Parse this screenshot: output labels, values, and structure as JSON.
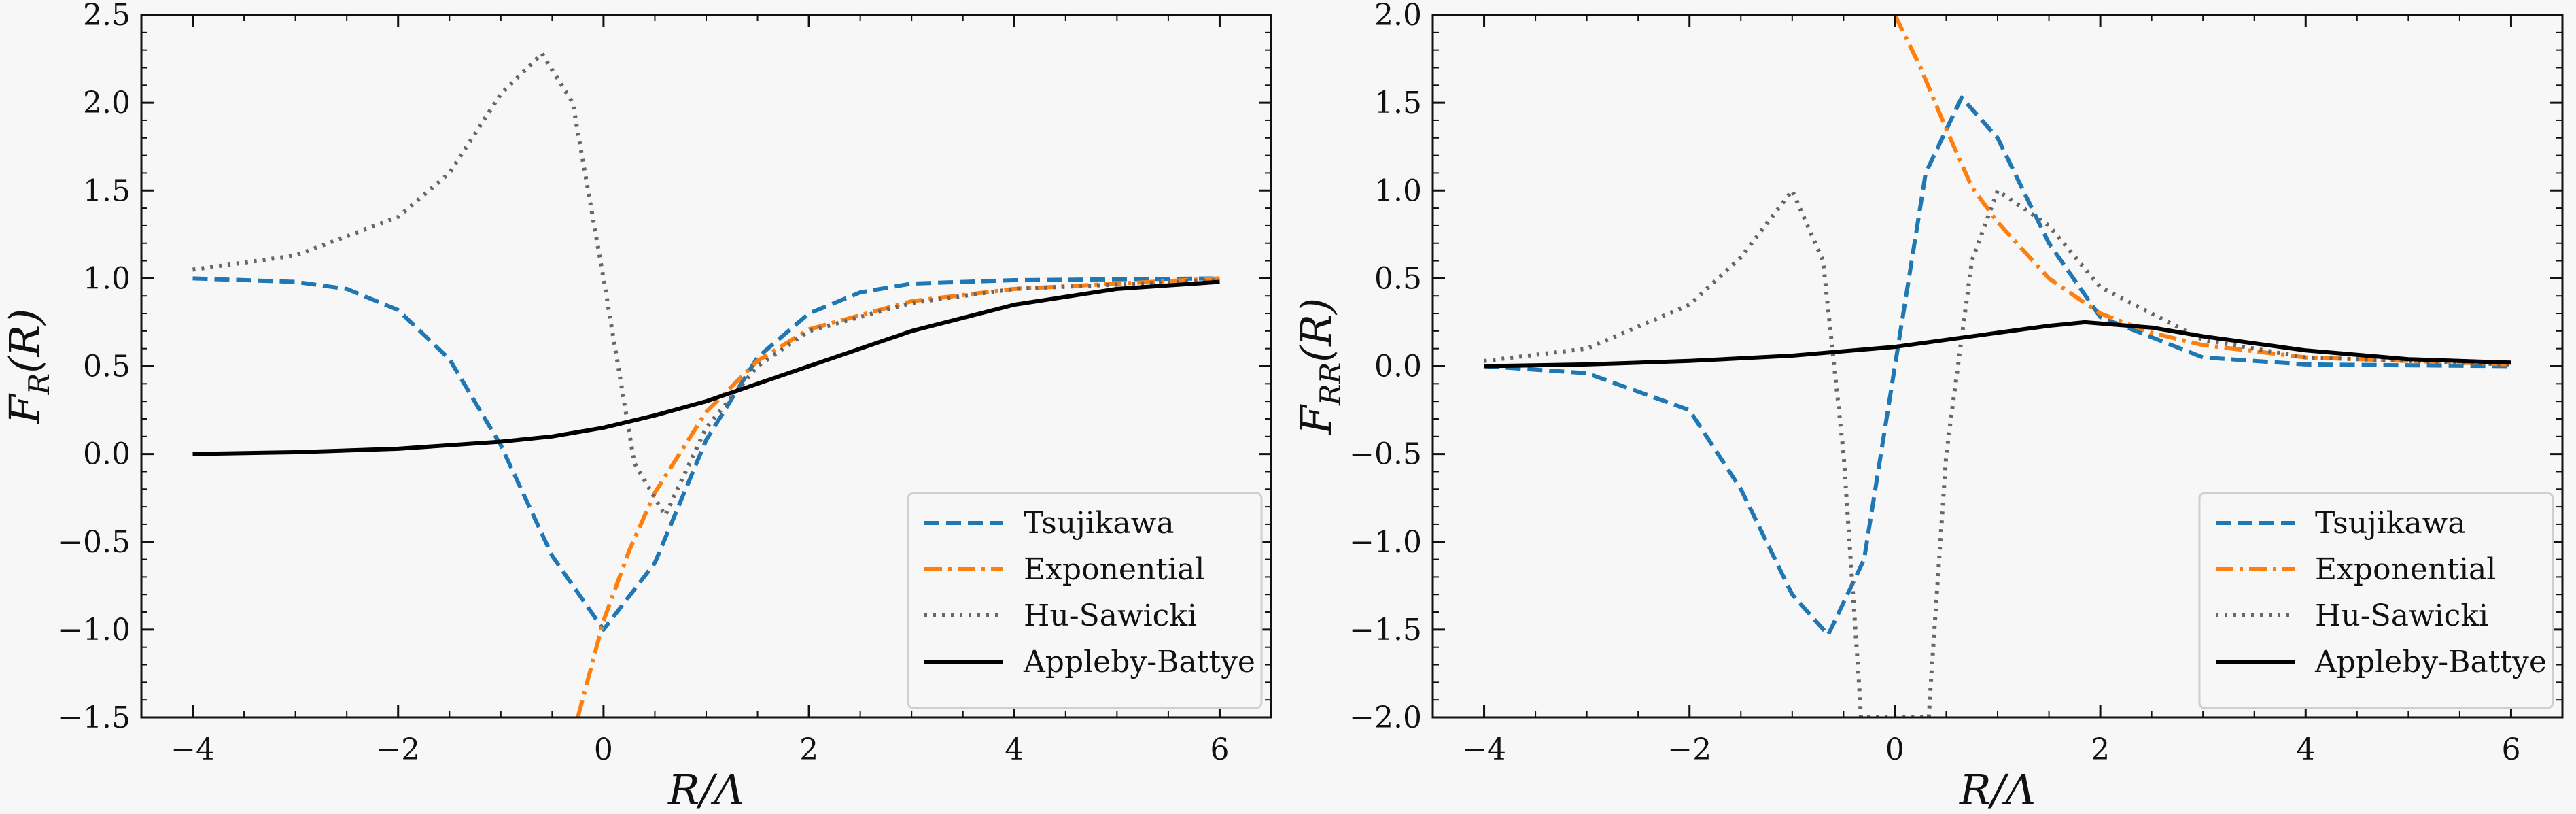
{
  "chart_data": [
    {
      "type": "line",
      "xlabel": "R/Λ",
      "ylabel": "F_R(R)",
      "xlim": [
        -4.5,
        6.5
      ],
      "ylim": [
        -1.5,
        2.5
      ],
      "xticks": [
        -4,
        -2,
        0,
        2,
        4,
        6
      ],
      "xtick_labels": [
        "−4",
        "−2",
        "0",
        "2",
        "4",
        "6"
      ],
      "yticks": [
        -1.5,
        -1.0,
        -0.5,
        0.0,
        0.5,
        1.0,
        1.5,
        2.0,
        2.5
      ],
      "ytick_labels": [
        "−1.5",
        "−1.0",
        "−0.5",
        "0.0",
        "0.5",
        "1.0",
        "1.5",
        "2.0",
        "2.5"
      ],
      "legend_position": "lower-right",
      "grid": false,
      "series": [
        {
          "name": "Tsujikawa",
          "color": "#1f77b4",
          "style": "dashed",
          "x": [
            -4,
            -3,
            -2.5,
            -2,
            -1.5,
            -1,
            -0.5,
            0,
            0.5,
            1,
            1.5,
            2,
            2.5,
            3,
            4,
            6
          ],
          "y": [
            1.0,
            0.98,
            0.94,
            0.82,
            0.54,
            0.05,
            -0.58,
            -1.0,
            -0.62,
            0.08,
            0.55,
            0.8,
            0.92,
            0.97,
            0.99,
            1.0
          ]
        },
        {
          "name": "Exponential",
          "color": "#ff7f0e",
          "style": "dashdot",
          "x": [
            -0.25,
            0,
            0.25,
            0.5,
            1,
            1.5,
            2,
            3,
            4,
            6
          ],
          "y": [
            -1.5,
            -0.95,
            -0.55,
            -0.22,
            0.24,
            0.53,
            0.71,
            0.87,
            0.94,
            1.0
          ]
        },
        {
          "name": "Hu-Sawicki",
          "color": "#666666",
          "style": "dotted",
          "x": [
            -4,
            -3,
            -2,
            -1.5,
            -1,
            -0.6,
            -0.3,
            0,
            0.3,
            0.6,
            1,
            1.5,
            2,
            3,
            4,
            6
          ],
          "y": [
            1.05,
            1.13,
            1.35,
            1.6,
            2.05,
            2.28,
            2.0,
            1.0,
            -0.05,
            -0.35,
            0.15,
            0.5,
            0.7,
            0.86,
            0.94,
            0.99
          ]
        },
        {
          "name": "Appleby-Battye",
          "color": "#000000",
          "style": "solid",
          "x": [
            -4,
            -3,
            -2,
            -1,
            -0.5,
            0,
            0.5,
            1,
            1.5,
            2,
            3,
            4,
            5,
            6
          ],
          "y": [
            0.0,
            0.01,
            0.03,
            0.07,
            0.1,
            0.15,
            0.22,
            0.3,
            0.4,
            0.5,
            0.7,
            0.85,
            0.94,
            0.98
          ]
        }
      ]
    },
    {
      "type": "line",
      "xlabel": "R/Λ",
      "ylabel": "F_RR(R)",
      "xlim": [
        -4.5,
        6.5
      ],
      "ylim": [
        -2.0,
        2.0
      ],
      "xticks": [
        -4,
        -2,
        0,
        2,
        4,
        6
      ],
      "xtick_labels": [
        "−4",
        "−2",
        "0",
        "2",
        "4",
        "6"
      ],
      "yticks": [
        -2.0,
        -1.5,
        -1.0,
        -0.5,
        0.0,
        0.5,
        1.0,
        1.5,
        2.0
      ],
      "ytick_labels": [
        "−2.0",
        "−1.5",
        "−1.0",
        "−0.5",
        "0.0",
        "0.5",
        "1.0",
        "1.5",
        "2.0"
      ],
      "legend_position": "lower-right",
      "grid": false,
      "series": [
        {
          "name": "Tsujikawa",
          "color": "#1f77b4",
          "style": "dashed",
          "x": [
            -4,
            -3,
            -2,
            -1.5,
            -1,
            -0.65,
            -0.3,
            0,
            0.3,
            0.65,
            1,
            1.5,
            2,
            3,
            4,
            6
          ],
          "y": [
            0.0,
            -0.04,
            -0.25,
            -0.7,
            -1.3,
            -1.53,
            -1.1,
            0.0,
            1.1,
            1.53,
            1.3,
            0.7,
            0.28,
            0.05,
            0.01,
            0.0
          ]
        },
        {
          "name": "Exponential",
          "color": "#ff7f0e",
          "style": "dashdot",
          "x": [
            0,
            0.25,
            0.5,
            0.75,
            1,
            1.5,
            2,
            2.5,
            3,
            4,
            6
          ],
          "y": [
            2.0,
            1.7,
            1.35,
            1.02,
            0.82,
            0.5,
            0.3,
            0.19,
            0.12,
            0.05,
            0.01
          ]
        },
        {
          "name": "Hu-Sawicki",
          "color": "#666666",
          "style": "dotted",
          "x": [
            -4,
            -3,
            -2,
            -1.5,
            -1,
            -0.7,
            -0.5,
            -0.35,
            -0.33,
            0.33,
            0.35,
            0.5,
            0.75,
            1,
            1.5,
            2,
            3,
            4,
            6
          ],
          "y": [
            0.03,
            0.1,
            0.35,
            0.62,
            1.0,
            0.6,
            -0.5,
            -1.8,
            -2.0,
            -2.0,
            -1.8,
            -0.5,
            0.6,
            1.0,
            0.8,
            0.45,
            0.15,
            0.05,
            0.01
          ]
        },
        {
          "name": "Appleby-Battye",
          "color": "#000000",
          "style": "solid",
          "x": [
            -4,
            -3,
            -2,
            -1,
            0,
            1,
            1.5,
            1.85,
            2.5,
            3,
            4,
            5,
            6
          ],
          "y": [
            0.0,
            0.01,
            0.03,
            0.06,
            0.11,
            0.19,
            0.23,
            0.25,
            0.22,
            0.17,
            0.09,
            0.04,
            0.02
          ]
        }
      ]
    }
  ]
}
